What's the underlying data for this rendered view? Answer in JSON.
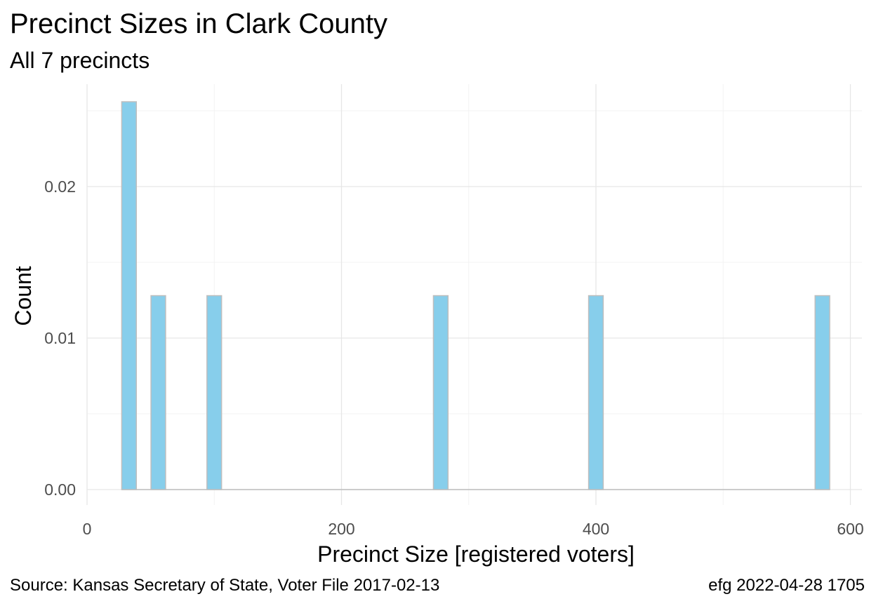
{
  "chart_data": {
    "type": "bar",
    "title": "Precinct Sizes in Clark County",
    "subtitle": "All 7 precincts",
    "xlabel": "Precinct Size [registered voters]",
    "ylabel": "Count",
    "caption_left": "Source:  Kansas Secretary of State, Voter File  2017-02-13",
    "caption_right": "efg 2022-04-28 1705",
    "xlim": [
      0,
      610
    ],
    "ylim": [
      0,
      0.0264
    ],
    "x_ticks": [
      0,
      200,
      400,
      600
    ],
    "x_tick_labels": [
      "0",
      "200",
      "400",
      "600"
    ],
    "y_ticks": [
      0.0,
      0.01,
      0.02
    ],
    "y_tick_labels": [
      "0.00",
      "0.01",
      "0.02"
    ],
    "grid": true,
    "bar_fill": "#87CEEB",
    "bar_outline": "#BEBEBE",
    "bar_width": 11.5,
    "bars": [
      {
        "x": 33,
        "value": 0.0256
      },
      {
        "x": 56,
        "value": 0.0128
      },
      {
        "x": 100,
        "value": 0.0128
      },
      {
        "x": 278,
        "value": 0.0128
      },
      {
        "x": 400,
        "value": 0.0128
      },
      {
        "x": 578,
        "value": 0.0128
      }
    ]
  }
}
